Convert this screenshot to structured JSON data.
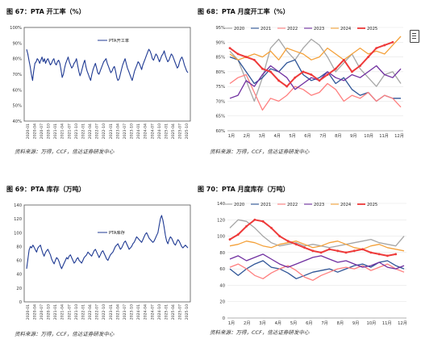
{
  "chart_data": [
    {
      "id": "c67",
      "type": "line",
      "title": "图 67：PTA 开工率（%）",
      "source": "资料来源：万得，CCF，信达证券研发中心",
      "ylim": [
        40,
        100
      ],
      "yticks": [
        "40%",
        "50%",
        "60%",
        "70%",
        "80%",
        "90%",
        "100%"
      ],
      "ytick_values": [
        40,
        50,
        60,
        70,
        80,
        90,
        100
      ],
      "xticks": [
        "2020-01",
        "2020-04",
        "2020-07",
        "2020-10",
        "2021-01",
        "2021-04",
        "2021-07",
        "2021-10",
        "2022-01",
        "2022-04",
        "2022-07",
        "2022-10",
        "2023-01",
        "2023-04",
        "2023-07",
        "2023-10",
        "2024-01",
        "2024-04",
        "2024-07",
        "2024-10",
        "2025-01",
        "2025-04",
        "2025-07",
        "2025-10"
      ],
      "legend_position": "top-center",
      "series": [
        {
          "name": "PTA开工率",
          "color": "#1f3a93",
          "values": [
            86,
            83,
            79,
            75,
            70,
            66,
            72,
            77,
            78,
            80,
            79,
            77,
            79,
            81,
            78,
            80,
            77,
            79,
            80,
            78,
            76,
            77,
            79,
            80,
            77,
            76,
            78,
            79,
            77,
            73,
            68,
            70,
            74,
            77,
            79,
            81,
            78,
            76,
            74,
            75,
            77,
            78,
            80,
            76,
            72,
            69,
            71,
            74,
            77,
            79,
            75,
            72,
            70,
            68,
            66,
            70,
            73,
            75,
            77,
            74,
            71,
            70,
            72,
            74,
            76,
            78,
            79,
            80,
            77,
            75,
            73,
            71,
            72,
            74,
            75,
            72,
            68,
            66,
            67,
            70,
            73,
            76,
            78,
            80,
            77,
            74,
            72,
            70,
            68,
            66,
            69,
            72,
            74,
            76,
            78,
            77,
            75,
            73,
            76,
            78,
            80,
            82,
            84,
            86,
            85,
            83,
            80,
            79,
            81,
            83,
            82,
            80,
            78,
            80,
            82,
            83,
            85,
            82,
            80,
            78,
            79,
            81,
            83,
            82,
            80,
            78,
            76,
            74,
            75,
            78,
            80,
            81,
            79,
            76,
            74,
            72,
            71
          ]
        }
      ]
    },
    {
      "id": "c68",
      "type": "line",
      "title": "图 68：PTA 月度开工率（%）",
      "source": "资料来源：万得，CCF，信达证券研发中心",
      "ylim": [
        60,
        95
      ],
      "yticks": [
        "60%",
        "65%",
        "70%",
        "75%",
        "80%",
        "85%",
        "90%",
        "95%"
      ],
      "ytick_values": [
        60,
        65,
        70,
        75,
        80,
        85,
        90,
        95
      ],
      "xticks": [
        "1月",
        "2月",
        "3月",
        "4月",
        "5月",
        "6月",
        "7月",
        "8月",
        "9月",
        "10月",
        "11月",
        "12月"
      ],
      "legend_position": "top",
      "series": [
        {
          "name": "2020",
          "color": "#a6a6a6",
          "values": [
            87,
            84,
            77,
            70,
            78,
            88,
            91,
            87,
            84,
            88,
            91,
            89,
            85,
            80,
            83,
            86,
            81,
            78,
            75,
            79,
            80,
            76
          ]
        },
        {
          "name": "2021",
          "color": "#2f5597",
          "values": [
            85,
            84,
            80,
            76,
            78,
            81,
            80,
            83,
            84,
            79,
            77,
            78,
            80,
            76,
            78,
            74,
            72,
            73,
            70,
            72,
            71,
            71
          ]
        },
        {
          "name": "2022",
          "color": "#ff7f7f",
          "values": [
            76,
            78,
            79,
            73,
            67,
            71,
            70,
            72,
            75,
            74,
            72,
            73,
            76,
            74,
            70,
            72,
            71,
            73,
            70,
            72,
            71,
            68
          ]
        },
        {
          "name": "2023",
          "color": "#7030a0",
          "values": [
            71,
            72,
            77,
            75,
            79,
            82,
            80,
            78,
            74,
            76,
            78,
            77,
            80,
            78,
            77,
            79,
            78,
            80,
            82,
            79,
            78,
            81
          ]
        },
        {
          "name": "2024",
          "color": "#f4a13a",
          "values": [
            86,
            84,
            85,
            86,
            85,
            87,
            84,
            88,
            87,
            86,
            84,
            85,
            88,
            86,
            84,
            86,
            88,
            86,
            87,
            86,
            89,
            92
          ]
        },
        {
          "name": "2025",
          "color": "#ee3a3a",
          "values": [
            88,
            86,
            85,
            84,
            81,
            80,
            77,
            75,
            78,
            80,
            79,
            77,
            79,
            81,
            84,
            80,
            82,
            85,
            88,
            89,
            90,
            null
          ]
        }
      ]
    },
    {
      "id": "c69",
      "type": "line",
      "title": "图 69：PTA 库存（万吨）",
      "source": "资料来源：万得，CCF，信达证券研发中心",
      "ylim": [
        0,
        140
      ],
      "yticks": [
        "0",
        "20",
        "40",
        "60",
        "80",
        "100",
        "120",
        "140"
      ],
      "ytick_values": [
        0,
        20,
        40,
        60,
        80,
        100,
        120,
        140
      ],
      "xticks": [
        "2020-01",
        "2020-04",
        "2020-07",
        "2020-10",
        "2021-01",
        "2021-04",
        "2021-07",
        "2021-10",
        "2022-01",
        "2022-04",
        "2022-07",
        "2022-10",
        "2023-01",
        "2023-04",
        "2023-07",
        "2023-10",
        "2024-01",
        "2024-04",
        "2024-07",
        "2024-10",
        "2025-01",
        "2025-04",
        "2025-07",
        "2025-10"
      ],
      "legend_position": "top-center",
      "series": [
        {
          "name": "PTA库存",
          "color": "#1f3a93",
          "values": [
            48,
            62,
            75,
            80,
            78,
            82,
            79,
            75,
            72,
            78,
            80,
            82,
            76,
            70,
            66,
            71,
            74,
            76,
            72,
            68,
            62,
            58,
            55,
            60,
            64,
            62,
            58,
            52,
            48,
            52,
            56,
            60,
            64,
            62,
            66,
            68,
            64,
            60,
            56,
            58,
            62,
            64,
            60,
            58,
            56,
            60,
            64,
            66,
            68,
            72,
            70,
            68,
            66,
            70,
            74,
            76,
            72,
            68,
            64,
            68,
            72,
            74,
            70,
            66,
            62,
            60,
            64,
            68,
            70,
            72,
            76,
            80,
            82,
            84,
            80,
            76,
            78,
            82,
            86,
            88,
            84,
            80,
            76,
            78,
            80,
            84,
            86,
            90,
            94,
            92,
            90,
            88,
            86,
            90,
            94,
            98,
            100,
            96,
            92,
            90,
            88,
            86,
            88,
            92,
            96,
            100,
            110,
            120,
            125,
            118,
            108,
            96,
            88,
            84,
            90,
            94,
            92,
            88,
            84,
            82,
            86,
            90,
            88,
            84,
            80,
            78,
            80,
            82,
            80,
            78
          ]
        }
      ]
    },
    {
      "id": "c70",
      "type": "line",
      "title": "图 70：PTA 月度库存（万吨）",
      "source": "资料来源：万得，CCF，信达证券研发中心",
      "ylim": [
        0,
        140
      ],
      "yticks": [
        "0",
        "20",
        "40",
        "60",
        "80",
        "100",
        "120",
        "140"
      ],
      "ytick_values": [
        0,
        20,
        40,
        60,
        80,
        100,
        120,
        140
      ],
      "xticks": [
        "1月",
        "2月",
        "3月",
        "4月",
        "5月",
        "6月",
        "7月",
        "8月",
        "9月",
        "10月",
        "11月",
        "12月"
      ],
      "legend_position": "top",
      "series": [
        {
          "name": "2020",
          "color": "#a6a6a6",
          "values": [
            110,
            120,
            118,
            110,
            100,
            92,
            88,
            90,
            92,
            88,
            90,
            88,
            86,
            88,
            90,
            92,
            94,
            96,
            92,
            90,
            88,
            100
          ]
        },
        {
          "name": "2021",
          "color": "#2f5597",
          "values": [
            60,
            52,
            60,
            66,
            70,
            62,
            60,
            55,
            48,
            52,
            56,
            58,
            60,
            56,
            60,
            64,
            66,
            62,
            68,
            70,
            64,
            60
          ]
        },
        {
          "name": "2022",
          "color": "#ff7f7f",
          "values": [
            62,
            66,
            60,
            52,
            48,
            55,
            60,
            64,
            58,
            50,
            46,
            52,
            56,
            60,
            62,
            60,
            64,
            58,
            62,
            66,
            60,
            56
          ]
        },
        {
          "name": "2023",
          "color": "#7030a0",
          "values": [
            72,
            76,
            70,
            74,
            78,
            72,
            66,
            62,
            66,
            70,
            74,
            76,
            72,
            68,
            70,
            66,
            62,
            64,
            68,
            62,
            60,
            64
          ]
        },
        {
          "name": "2024",
          "color": "#f4a13a",
          "values": [
            88,
            90,
            94,
            92,
            88,
            86,
            90,
            92,
            94,
            90,
            86,
            88,
            92,
            94,
            90,
            86,
            84,
            88,
            90,
            86,
            84,
            82
          ]
        },
        {
          "name": "2025",
          "color": "#ee3a3a",
          "values": [
            96,
            102,
            112,
            120,
            118,
            110,
            100,
            94,
            90,
            86,
            82,
            80,
            84,
            82,
            80,
            82,
            84,
            80,
            78,
            76,
            78,
            null
          ]
        }
      ]
    }
  ]
}
